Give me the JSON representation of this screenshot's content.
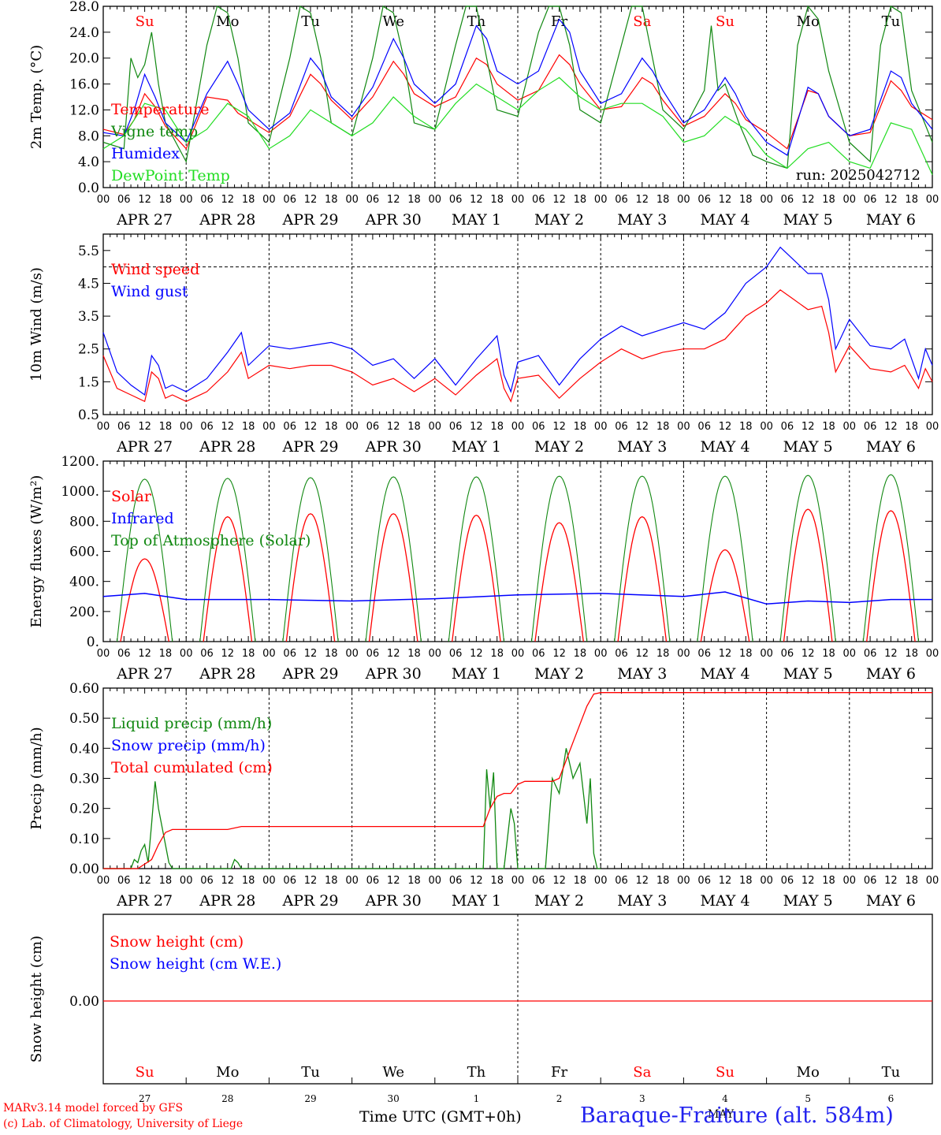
{
  "footer": {
    "model_line": "MARv3.14 model forced by GFS",
    "lab_line": "(c) Lab. of Climatology, University of Liege",
    "time_label": "Time UTC (GMT+0h)",
    "station": "Baraque-Fraiture (alt. 584m)",
    "month_label": "MAY"
  },
  "colors": {
    "red": "#ff0000",
    "blue": "#0000ff",
    "darkgreen": "#118811",
    "green": "#22dd22",
    "weekend": "#ff0000"
  },
  "chart_data": [
    {
      "type": "line",
      "id": "temperature",
      "ylabel": "2m Temp. (°C)",
      "ylim": [
        0,
        28
      ],
      "yticks": [
        "0.0",
        "4.0",
        "8.0",
        "12.0",
        "16.0",
        "20.0",
        "24.0",
        "28.0"
      ],
      "ytick_values": [
        0,
        4,
        8,
        12,
        16,
        20,
        24,
        28
      ],
      "days": [
        "Su",
        "Mo",
        "Tu",
        "We",
        "Th",
        "Fr",
        "Sa",
        "Su",
        "Mo",
        "Tu"
      ],
      "weekend": [
        true,
        false,
        false,
        false,
        false,
        false,
        true,
        true,
        false,
        false
      ],
      "dates": [
        "APR 27",
        "APR 28",
        "APR 29",
        "APR 30",
        "MAY  1",
        "MAY  2",
        "MAY  3",
        "MAY  4",
        "MAY  5",
        "MAY  6"
      ],
      "hours": [
        "00",
        "06",
        "12",
        "18"
      ],
      "run_label": "run: 2025042712",
      "series": [
        {
          "name": "Temperature",
          "color": "#ff0000",
          "x": [
            0,
            6,
            9,
            12,
            15,
            18,
            24,
            30,
            36,
            39,
            42,
            48,
            54,
            60,
            63,
            66,
            72,
            78,
            84,
            87,
            90,
            96,
            102,
            108,
            111,
            114,
            120,
            126,
            132,
            135,
            138,
            144,
            150,
            156,
            159,
            162,
            168,
            174,
            180,
            183,
            186,
            192,
            198,
            204,
            207,
            210,
            216,
            222,
            228,
            231,
            234,
            240
          ],
          "y": [
            9,
            8.2,
            10.5,
            14.5,
            12.5,
            9.5,
            6,
            14,
            13.5,
            11.5,
            10.5,
            8.5,
            11,
            17.5,
            16,
            13.5,
            10.5,
            14,
            19.5,
            17.5,
            14.5,
            12.5,
            14,
            20,
            19,
            16,
            13.5,
            15,
            20.5,
            19,
            16,
            12,
            12.5,
            17,
            16,
            13.5,
            9.5,
            11,
            14.5,
            13,
            10.5,
            8.5,
            6,
            15,
            14.5,
            11,
            8,
            8.5,
            16.5,
            15,
            12.5,
            10.5
          ]
        },
        {
          "name": "Vigne temp",
          "color": "#118811",
          "x": [
            0,
            6,
            8,
            10,
            12,
            14,
            16,
            18,
            24,
            30,
            33,
            36,
            39,
            42,
            48,
            54,
            57,
            60,
            63,
            66,
            72,
            78,
            81,
            84,
            87,
            90,
            96,
            102,
            105,
            108,
            111,
            114,
            120,
            126,
            129,
            132,
            135,
            138,
            144,
            150,
            153,
            156,
            159,
            162,
            168,
            174,
            176,
            178,
            180,
            184,
            188,
            192,
            198,
            201,
            204,
            207,
            210,
            216,
            222,
            225,
            228,
            231,
            234,
            240
          ],
          "y": [
            7,
            6,
            20,
            17,
            19,
            24,
            16,
            10,
            4,
            22,
            28,
            27,
            20,
            10,
            7,
            20,
            28,
            27,
            20,
            10,
            8,
            20,
            28,
            27,
            20,
            10,
            9,
            22,
            28,
            28,
            20,
            12,
            11,
            24,
            28,
            28,
            22,
            12,
            10,
            22,
            28,
            28,
            20,
            12,
            9,
            15,
            25,
            15,
            16,
            10,
            5,
            4,
            3,
            22,
            28,
            26,
            18,
            7,
            4,
            22,
            28,
            27,
            15,
            7
          ]
        },
        {
          "name": "Humidex",
          "color": "#0000ff",
          "x": [
            0,
            6,
            9,
            12,
            15,
            18,
            24,
            30,
            36,
            39,
            42,
            48,
            54,
            60,
            63,
            66,
            72,
            78,
            84,
            87,
            90,
            96,
            102,
            108,
            111,
            114,
            120,
            126,
            132,
            135,
            138,
            144,
            150,
            156,
            159,
            162,
            168,
            174,
            180,
            183,
            186,
            192,
            198,
            204,
            207,
            210,
            216,
            222,
            228,
            231,
            234,
            240
          ],
          "y": [
            8.5,
            8,
            12,
            17.5,
            14,
            10,
            7,
            14.5,
            19.5,
            16,
            12,
            9,
            11.5,
            20,
            18,
            14,
            11,
            15.5,
            23,
            20,
            16,
            13,
            16,
            25,
            23,
            18,
            16,
            18,
            26,
            24,
            18,
            13,
            14.5,
            20,
            18,
            15,
            10,
            12,
            17,
            14.5,
            11,
            7,
            5,
            15.5,
            14.5,
            11,
            8,
            9,
            18,
            17,
            13,
            9
          ]
        },
        {
          "name": "DewPoint Temp",
          "color": "#22dd22",
          "x": [
            0,
            6,
            12,
            18,
            24,
            30,
            36,
            42,
            48,
            54,
            60,
            66,
            72,
            78,
            84,
            90,
            96,
            102,
            108,
            114,
            120,
            126,
            132,
            138,
            144,
            150,
            156,
            162,
            168,
            174,
            180,
            186,
            192,
            198,
            204,
            210,
            216,
            222,
            228,
            234,
            240
          ],
          "y": [
            6,
            8,
            13,
            12,
            7,
            9,
            13,
            11,
            6,
            8,
            12,
            10,
            8,
            10,
            14,
            11,
            9,
            13,
            16,
            14,
            12,
            15,
            17,
            14,
            12,
            13,
            13,
            11,
            7,
            8,
            11,
            9,
            5,
            3,
            6,
            7,
            4,
            3,
            10,
            9,
            2
          ]
        }
      ]
    },
    {
      "type": "line",
      "id": "wind",
      "ylabel": "10m Wind (m/s)",
      "ylim": [
        0.5,
        6
      ],
      "yticks": [
        "0.5",
        "1.5",
        "2.5",
        "3.5",
        "4.5",
        "5.5"
      ],
      "ytick_values": [
        0.5,
        1.5,
        2.5,
        3.5,
        4.5,
        5.5
      ],
      "threshold": 5,
      "dates": [
        "APR 27",
        "APR 28",
        "APR 29",
        "APR 30",
        "MAY  1",
        "MAY  2",
        "MAY  3",
        "MAY  4",
        "MAY  5",
        "MAY  6"
      ],
      "hours": [
        "00",
        "06",
        "12",
        "18"
      ],
      "series": [
        {
          "name": "Wind speed",
          "color": "#ff0000",
          "x": [
            0,
            4,
            8,
            12,
            14,
            16,
            18,
            20,
            24,
            30,
            36,
            40,
            42,
            48,
            54,
            60,
            66,
            72,
            78,
            84,
            90,
            96,
            102,
            108,
            114,
            116,
            118,
            120,
            126,
            132,
            138,
            144,
            150,
            156,
            162,
            168,
            174,
            180,
            186,
            192,
            196,
            200,
            204,
            208,
            210,
            212,
            216,
            222,
            228,
            232,
            236,
            238,
            240
          ],
          "y": [
            2.3,
            1.3,
            1.1,
            0.9,
            1.8,
            1.6,
            1.0,
            1.1,
            0.9,
            1.2,
            1.8,
            2.4,
            1.6,
            2.0,
            1.9,
            2.0,
            2.0,
            1.8,
            1.4,
            1.6,
            1.2,
            1.6,
            1.1,
            1.7,
            2.2,
            1.3,
            0.9,
            1.6,
            1.7,
            1.0,
            1.6,
            2.1,
            2.5,
            2.2,
            2.4,
            2.5,
            2.5,
            2.8,
            3.5,
            3.9,
            4.3,
            4.0,
            3.7,
            3.8,
            3.0,
            1.8,
            2.6,
            1.9,
            1.8,
            2.0,
            1.3,
            1.9,
            1.5
          ]
        },
        {
          "name": "Wind gust",
          "color": "#0000ff",
          "x": [
            0,
            4,
            8,
            12,
            14,
            16,
            18,
            20,
            24,
            30,
            36,
            40,
            42,
            48,
            54,
            60,
            66,
            72,
            78,
            84,
            90,
            96,
            102,
            108,
            114,
            116,
            118,
            120,
            126,
            132,
            138,
            144,
            150,
            156,
            162,
            168,
            174,
            180,
            186,
            192,
            196,
            200,
            204,
            208,
            210,
            212,
            216,
            222,
            228,
            232,
            236,
            238,
            240
          ],
          "y": [
            3.0,
            1.8,
            1.4,
            1.1,
            2.3,
            2.0,
            1.3,
            1.4,
            1.2,
            1.6,
            2.4,
            3.0,
            2.0,
            2.6,
            2.5,
            2.6,
            2.7,
            2.5,
            2.0,
            2.2,
            1.6,
            2.2,
            1.4,
            2.2,
            2.9,
            1.7,
            1.2,
            2.1,
            2.3,
            1.4,
            2.2,
            2.8,
            3.2,
            2.9,
            3.1,
            3.3,
            3.1,
            3.6,
            4.5,
            5.0,
            5.6,
            5.2,
            4.8,
            4.8,
            4.0,
            2.5,
            3.4,
            2.6,
            2.5,
            2.8,
            1.6,
            2.5,
            2.0
          ]
        }
      ]
    },
    {
      "type": "line",
      "id": "energy",
      "ylabel": "Energy fluxes (W/m²)",
      "ylim": [
        0,
        1200
      ],
      "yticks": [
        "0.",
        "200.",
        "400.",
        "600.",
        "800.",
        "1000.",
        "1200."
      ],
      "ytick_values": [
        0,
        200,
        400,
        600,
        800,
        1000,
        1200
      ],
      "dates": [
        "APR 27",
        "APR 28",
        "APR 29",
        "APR 30",
        "MAY  1",
        "MAY  2",
        "MAY  3",
        "MAY  4",
        "MAY  5",
        "MAY  6"
      ],
      "hours": [
        "00",
        "06",
        "12",
        "18"
      ],
      "series": [
        {
          "name": "Solar",
          "color": "#ff0000",
          "peaks": [
            550,
            830,
            850,
            850,
            840,
            790,
            830,
            610,
            880,
            870
          ]
        },
        {
          "name": "Infrared",
          "color": "#0000ff",
          "x": [
            0,
            12,
            24,
            48,
            72,
            96,
            120,
            144,
            168,
            180,
            192,
            204,
            216,
            228,
            240
          ],
          "y": [
            300,
            320,
            280,
            280,
            270,
            285,
            310,
            320,
            300,
            330,
            250,
            270,
            260,
            280,
            280
          ]
        },
        {
          "name": "Top of Atmosphere (Solar)",
          "color": "#118811",
          "peaks": [
            1080,
            1085,
            1090,
            1095,
            1095,
            1100,
            1100,
            1100,
            1105,
            1110
          ]
        }
      ]
    },
    {
      "type": "line",
      "id": "precip",
      "ylabel": "Precip (mm/h)",
      "ylim": [
        0,
        0.6
      ],
      "yticks": [
        "0.00",
        "0.10",
        "0.20",
        "0.30",
        "0.40",
        "0.50",
        "0.60"
      ],
      "ytick_values": [
        0,
        0.1,
        0.2,
        0.3,
        0.4,
        0.5,
        0.6
      ],
      "dates": [
        "APR 27",
        "APR 28",
        "APR 29",
        "APR 30",
        "MAY  1",
        "MAY  2",
        "MAY  3",
        "MAY  4",
        "MAY  5",
        "MAY  6"
      ],
      "hours": [
        "00",
        "06",
        "12",
        "18"
      ],
      "series": [
        {
          "name": "Liquid precip (mm/h)",
          "color": "#118811",
          "x": [
            0,
            8,
            9,
            10,
            11,
            12,
            13,
            14,
            15,
            16,
            17,
            18,
            19,
            20,
            37,
            38,
            39,
            40,
            110,
            111,
            112,
            113,
            114,
            116,
            118,
            119,
            120,
            121,
            128,
            130,
            132,
            134,
            136,
            138,
            140,
            141,
            142,
            143,
            144
          ],
          "y": [
            0,
            0,
            0.03,
            0.02,
            0.06,
            0.08,
            0.02,
            0.15,
            0.29,
            0.2,
            0.14,
            0.08,
            0.02,
            0,
            0,
            0.03,
            0.02,
            0,
            0,
            0.33,
            0.2,
            0.32,
            0,
            0,
            0.2,
            0.15,
            0,
            0,
            0,
            0.3,
            0.25,
            0.4,
            0.3,
            0.35,
            0.15,
            0.3,
            0.05,
            0,
            0
          ]
        },
        {
          "name": "Snow precip (mm/h)",
          "color": "#0000ff",
          "x": [],
          "y": []
        },
        {
          "name": "Total cumulated (cm)",
          "color": "#ff0000",
          "x": [
            0,
            10,
            14,
            16,
            18,
            20,
            24,
            36,
            40,
            48,
            110,
            112,
            114,
            116,
            118,
            120,
            122,
            130,
            132,
            134,
            136,
            138,
            140,
            142,
            144,
            240
          ],
          "y": [
            0,
            0,
            0.03,
            0.08,
            0.12,
            0.13,
            0.13,
            0.13,
            0.14,
            0.14,
            0.14,
            0.2,
            0.24,
            0.25,
            0.25,
            0.28,
            0.29,
            0.29,
            0.3,
            0.36,
            0.42,
            0.48,
            0.54,
            0.58,
            0.585,
            0.585
          ]
        }
      ]
    },
    {
      "type": "line",
      "id": "snow",
      "ylabel": "Snow height (cm)",
      "yticks": [
        "0.00"
      ],
      "ytick_values": [
        0
      ],
      "days": [
        "Su",
        "Mo",
        "Tu",
        "We",
        "Th",
        "Fr",
        "Sa",
        "Su",
        "Mo",
        "Tu"
      ],
      "weekend": [
        true,
        false,
        false,
        false,
        false,
        false,
        true,
        true,
        false,
        false
      ],
      "day_numbers": [
        "27",
        "28",
        "29",
        "30",
        "1",
        "2",
        "3",
        "4",
        "5",
        "6"
      ],
      "series": [
        {
          "name": "Snow height (cm)",
          "color": "#ff0000",
          "x": [
            0,
            240
          ],
          "y": [
            0,
            0
          ]
        },
        {
          "name": "Snow height (cm W.E.)",
          "color": "#0000ff",
          "x": [],
          "y": []
        }
      ]
    }
  ]
}
